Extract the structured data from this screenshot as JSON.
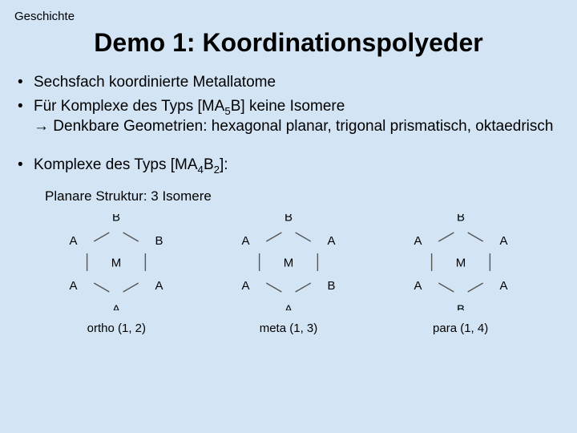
{
  "breadcrumb": "Geschichte",
  "title": "Demo 1: Koordinationspolyeder",
  "bullets": {
    "b1": "Sechsfach koordinierte Metallatome",
    "b2_pre": "Für Komplexe des Typs [MA",
    "b2_sub1": "5",
    "b2_post1": "B] keine Isomere",
    "b2_arrow": "→  Denkbare Geometrien: hexagonal planar, trigonal prismatisch, oktaedrisch",
    "b3_pre": "Komplexe des Typs [MA",
    "b3_sub1": "4",
    "b3_mid": "B",
    "b3_sub2": "2",
    "b3_post": "]:"
  },
  "isomer_label": "Planare Struktur: 3 Isomere",
  "hex": {
    "stroke": "#555555",
    "stroke_width": 1.4,
    "radius": 42,
    "center_label": "M",
    "diagrams": [
      {
        "caption": "ortho (1, 2)",
        "vertices": [
          "B",
          "B",
          "A",
          "A",
          "A",
          "A"
        ]
      },
      {
        "caption": "meta (1, 3)",
        "vertices": [
          "B",
          "A",
          "B",
          "A",
          "A",
          "A"
        ]
      },
      {
        "caption": "para (1, 4)",
        "vertices": [
          "B",
          "A",
          "A",
          "B",
          "A",
          "A"
        ]
      }
    ]
  }
}
